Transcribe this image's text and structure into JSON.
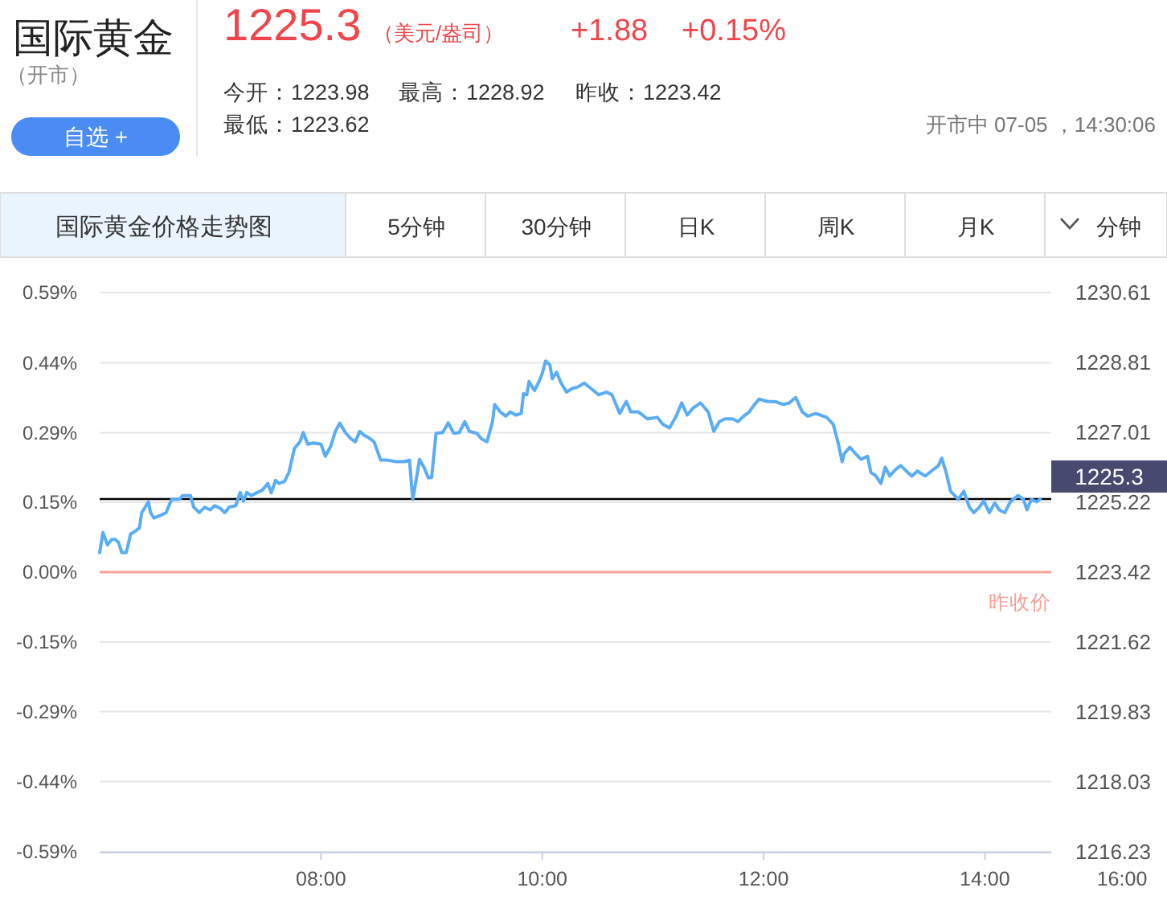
{
  "chart_data": {
    "type": "line",
    "title": "国际黄金",
    "subtitle": "（开市）",
    "annotations": [
      "1225.3",
      "（美元/盎司）",
      "+1.88",
      "+0.15%",
      "今开：1223.98",
      "最高：1228.92",
      "昨收：1223.42",
      "最低：1223.62",
      "开市中 07-05 ，14:30:06",
      "自选 +",
      "国际黄金价格走势图",
      "5分钟",
      "30分钟",
      "日K",
      "周K",
      "月K",
      "分钟",
      "16:00"
    ],
    "x": [
      6.0,
      6.03,
      6.07,
      6.11,
      6.14,
      6.17,
      6.2,
      6.24,
      6.28,
      6.32,
      6.36,
      6.38,
      6.42,
      6.44,
      6.46,
      6.49,
      6.55,
      6.6,
      6.65,
      6.72,
      6.75,
      6.82,
      6.85,
      6.9,
      6.95,
      7.0,
      7.04,
      7.09,
      7.13,
      7.17,
      7.23,
      7.27,
      7.3,
      7.33,
      7.37,
      7.42,
      7.47,
      7.52,
      7.55,
      7.59,
      7.62,
      7.67,
      7.71,
      7.76,
      7.81,
      7.84,
      7.88,
      7.93,
      8.0,
      8.04,
      8.09,
      8.13,
      8.17,
      8.22,
      8.27,
      8.31,
      8.35,
      8.39,
      8.43,
      8.48,
      8.54,
      8.6,
      8.68,
      8.75,
      8.8,
      8.83,
      8.86,
      8.89,
      8.93,
      8.97,
      9.0,
      9.04,
      9.1,
      9.15,
      9.2,
      9.25,
      9.3,
      9.34,
      9.41,
      9.45,
      9.5,
      9.55,
      9.57,
      9.62,
      9.67,
      9.71,
      9.76,
      9.81,
      9.83,
      9.86,
      9.88,
      9.93,
      9.97,
      10.0,
      10.03,
      10.07,
      10.09,
      10.13,
      10.17,
      10.22,
      10.27,
      10.32,
      10.38,
      10.44,
      10.51,
      10.58,
      10.63,
      10.7,
      10.76,
      10.8,
      10.87,
      10.95,
      11.04,
      11.09,
      11.15,
      11.21,
      11.26,
      11.31,
      11.36,
      11.43,
      11.5,
      11.55,
      11.6,
      11.65,
      11.72,
      11.77,
      11.82,
      11.87,
      11.91,
      11.96,
      12.03,
      12.11,
      12.18,
      12.23,
      12.29,
      12.35,
      12.4,
      12.47,
      12.57,
      12.63,
      12.68,
      12.71,
      12.73,
      12.78,
      12.83,
      12.88,
      12.94,
      12.97,
      13.01,
      13.06,
      13.1,
      13.14,
      13.19,
      13.24,
      13.29,
      13.34,
      13.39,
      13.46,
      13.53,
      13.58,
      13.61,
      13.65,
      13.69,
      13.76,
      13.81,
      13.86,
      13.9,
      13.95,
      13.99,
      14.04,
      14.09,
      14.13,
      14.18,
      14.23,
      14.3,
      14.35,
      14.38,
      14.42,
      14.47,
      14.5
    ],
    "series": [
      {
        "color": "#5aacf6",
        "axis": "y2",
        "values": [
          1223.92,
          1224.44,
          1224.12,
          1224.26,
          1224.26,
          1224.19,
          1223.92,
          1223.92,
          1224.4,
          1224.47,
          1224.56,
          1224.95,
          1225.13,
          1225.23,
          1224.95,
          1224.81,
          1224.88,
          1224.95,
          1225.29,
          1225.29,
          1225.39,
          1225.39,
          1225.09,
          1224.95,
          1225.09,
          1225.02,
          1225.13,
          1225.06,
          1224.95,
          1225.09,
          1225.13,
          1225.47,
          1225.25,
          1225.47,
          1225.39,
          1225.46,
          1225.53,
          1225.7,
          1225.46,
          1225.78,
          1225.7,
          1225.75,
          1225.98,
          1226.6,
          1226.77,
          1227.01,
          1226.71,
          1226.74,
          1226.71,
          1226.4,
          1226.67,
          1227.04,
          1227.25,
          1227.01,
          1226.85,
          1226.77,
          1227.04,
          1226.94,
          1226.88,
          1226.77,
          1226.3,
          1226.3,
          1226.26,
          1226.26,
          1226.3,
          1225.29,
          1225.78,
          1226.32,
          1226.12,
          1225.85,
          1225.85,
          1226.99,
          1227.01,
          1227.26,
          1226.99,
          1227.01,
          1227.29,
          1227.04,
          1226.99,
          1226.85,
          1226.77,
          1227.29,
          1227.73,
          1227.54,
          1227.43,
          1227.54,
          1227.46,
          1227.5,
          1228.01,
          1227.98,
          1228.32,
          1228.09,
          1228.32,
          1228.53,
          1228.85,
          1228.74,
          1228.39,
          1228.56,
          1228.28,
          1228.05,
          1228.14,
          1228.18,
          1228.28,
          1228.14,
          1227.98,
          1228.05,
          1227.98,
          1227.5,
          1227.81,
          1227.54,
          1227.54,
          1227.36,
          1227.4,
          1227.22,
          1227.13,
          1227.43,
          1227.77,
          1227.46,
          1227.63,
          1227.77,
          1227.54,
          1227.04,
          1227.29,
          1227.36,
          1227.36,
          1227.29,
          1227.43,
          1227.54,
          1227.7,
          1227.87,
          1227.81,
          1227.8,
          1227.73,
          1227.77,
          1227.91,
          1227.54,
          1227.43,
          1227.5,
          1227.4,
          1227.22,
          1226.67,
          1226.26,
          1226.47,
          1226.63,
          1226.47,
          1226.32,
          1226.4,
          1225.98,
          1225.91,
          1225.7,
          1226.12,
          1225.89,
          1226.05,
          1226.16,
          1226.02,
          1225.89,
          1226.02,
          1225.89,
          1226.05,
          1226.16,
          1226.35,
          1225.98,
          1225.5,
          1225.29,
          1225.5,
          1225.09,
          1224.95,
          1225.09,
          1225.25,
          1224.95,
          1225.2,
          1225.02,
          1224.95,
          1225.23,
          1225.39,
          1225.29,
          1225.02,
          1225.29,
          1225.23,
          1225.3
        ]
      }
    ],
    "xlim": [
      6,
      14.6
    ],
    "xticks": [
      {
        "value": 8,
        "label": "08:00"
      },
      {
        "value": 10,
        "label": "10:00"
      },
      {
        "value": 12,
        "label": "12:00"
      },
      {
        "value": 14,
        "label": "14:00"
      }
    ],
    "ylim": [
      -0.588,
      0.588
    ],
    "yticks": [
      {
        "value": -0.588,
        "label": "-0.59%"
      },
      {
        "value": -0.44,
        "label": "-0.44%"
      },
      {
        "value": -0.293,
        "label": "-0.29%"
      },
      {
        "value": -0.147,
        "label": "-0.15%"
      },
      {
        "value": 0,
        "label": "0.00%"
      },
      {
        "value": 0.147,
        "label": "0.15%"
      },
      {
        "value": 0.293,
        "label": "0.29%"
      },
      {
        "value": 0.44,
        "label": "0.44%"
      },
      {
        "value": 0.588,
        "label": "0.59%"
      }
    ],
    "y2lim": [
      1216.23,
      1230.61
    ],
    "y2ticks": [
      1216.23,
      1218.03,
      1219.83,
      1221.62,
      1223.42,
      1225.22,
      1227.01,
      1228.81,
      1230.61
    ],
    "grid": "y",
    "ref_lines": [
      {
        "axis": "y2",
        "value": 1225.3,
        "label": "1225.3",
        "color": "#000000"
      },
      {
        "axis": "y2",
        "value": 1223.42,
        "label": "昨收价",
        "color": "#f8a197"
      }
    ]
  }
}
